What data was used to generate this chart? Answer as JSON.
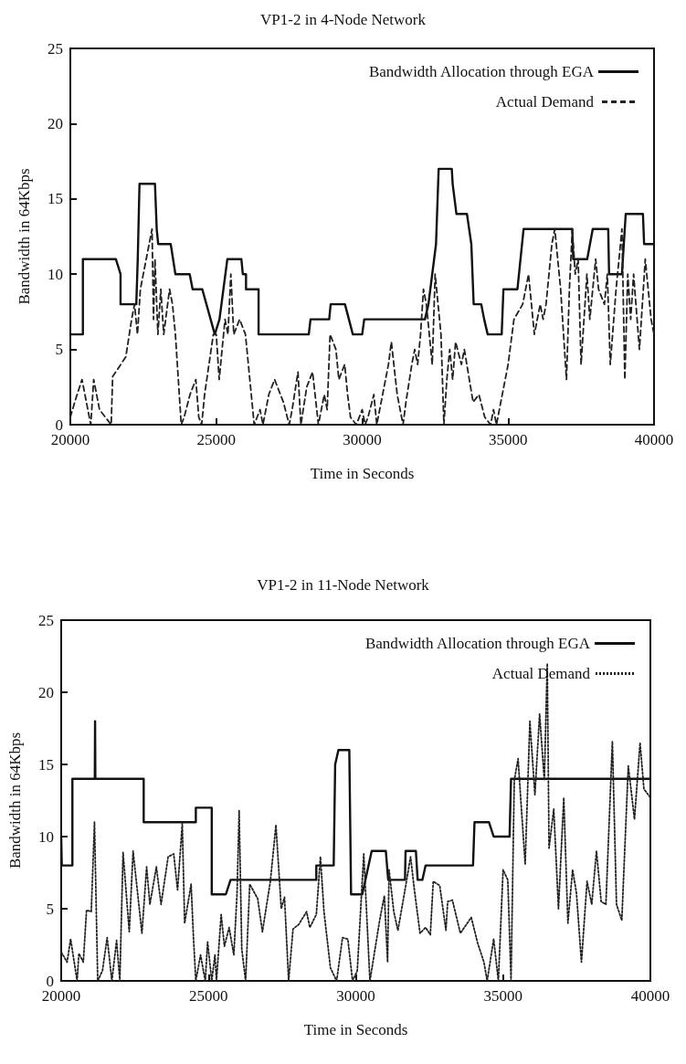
{
  "chart_data": [
    {
      "type": "line",
      "title": "VP1-2 in 4-Node Network",
      "xlabel": "Time in Seconds",
      "ylabel": "Bandwidth in 64Kbps",
      "xlim": [
        20000,
        40000
      ],
      "xticks": [
        20000,
        25000,
        30000,
        35000,
        40000
      ],
      "ylim": [
        0,
        25
      ],
      "yticks": [
        0,
        5,
        10,
        15,
        20,
        25
      ],
      "grid": false,
      "legend": "top right",
      "marker": "none",
      "series": [
        {
          "name": "Bandwidth Allocation through EGA",
          "color": "#111111",
          "line_style": "solid",
          "x": [
            20000,
            20430,
            20430,
            21560,
            21720,
            21720,
            22260,
            22310,
            22370,
            22900,
            22960,
            23010,
            23440,
            23600,
            24090,
            24190,
            24520,
            24950,
            25110,
            25380,
            25860,
            25910,
            26020,
            26020,
            26450,
            26450,
            28170,
            28230,
            28870,
            28920,
            29410,
            29680,
            30000,
            30070,
            32150,
            32270,
            32530,
            32620,
            33070,
            33100,
            33230,
            33590,
            33740,
            33820,
            34080,
            34180,
            34300,
            34780,
            34840,
            35320,
            35530,
            37200,
            37230,
            37710,
            37900,
            38430,
            38460,
            38900,
            39030,
            39620,
            39660,
            40000
          ],
          "values": [
            6,
            6,
            11,
            11,
            10,
            8,
            8,
            11,
            16,
            16,
            13,
            12,
            12,
            10,
            10,
            9,
            9,
            6,
            7,
            11,
            11,
            10,
            10,
            9,
            9,
            6,
            6,
            7,
            7,
            8,
            8,
            6,
            6,
            7,
            7,
            8,
            12,
            17,
            17,
            16,
            14,
            14,
            12,
            8,
            8,
            7,
            6,
            6,
            9,
            9,
            13,
            13,
            11,
            11,
            13,
            13,
            10,
            10,
            14,
            14,
            12,
            12
          ]
        },
        {
          "name": "Actual Demand",
          "color": "#222222",
          "line_style": "dashed",
          "x": [
            20000,
            20150,
            20400,
            20700,
            20800,
            21000,
            21400,
            21450,
            21900,
            22100,
            22200,
            22300,
            22400,
            22600,
            22800,
            22850,
            22900,
            23000,
            23100,
            23200,
            23400,
            23500,
            23600,
            23800,
            23900,
            24100,
            24300,
            24400,
            24500,
            24600,
            24900,
            25000,
            25100,
            25300,
            25400,
            25500,
            25600,
            25800,
            26000,
            26300,
            26500,
            26600,
            26800,
            27000,
            27200,
            27300,
            27500,
            27600,
            27800,
            27900,
            28100,
            28300,
            28500,
            28700,
            28800,
            28900,
            29100,
            29200,
            29400,
            29500,
            29600,
            29800,
            30000,
            30100,
            30200,
            30400,
            30500,
            30700,
            30900,
            31000,
            31200,
            31400,
            31500,
            31700,
            31800,
            31900,
            32000,
            32100,
            32200,
            32400,
            32500,
            32700,
            32800,
            32900,
            33000,
            33100,
            33200,
            33400,
            33500,
            33800,
            34000,
            34200,
            34400,
            34500,
            34600,
            35000,
            35200,
            35500,
            35700,
            35900,
            36100,
            36200,
            36300,
            36500,
            36600,
            36800,
            37000,
            37100,
            37200,
            37300,
            37400,
            37500,
            37700,
            37800,
            38000,
            38100,
            38300,
            38400,
            38500,
            38700,
            38900,
            39000,
            39100,
            39200,
            39300,
            39500,
            39700,
            39900,
            40000
          ],
          "values": [
            0.5,
            1.5,
            3,
            0,
            3,
            1,
            0,
            3.2,
            4.5,
            7,
            8,
            6,
            9,
            11,
            13,
            7,
            11,
            6,
            9,
            6,
            9,
            8,
            6,
            0,
            0.5,
            2,
            3,
            0.5,
            0,
            2,
            6,
            6,
            3,
            7,
            6,
            10,
            6,
            7,
            6,
            0,
            1,
            0,
            2,
            3,
            2,
            1.5,
            0,
            1,
            3.5,
            0,
            2.5,
            3.5,
            0,
            2,
            1,
            6,
            5,
            3,
            4,
            2,
            0.5,
            0,
            1,
            0,
            0.5,
            2,
            0,
            2,
            4,
            5.5,
            2,
            0,
            1.5,
            4,
            5,
            4,
            6,
            9,
            8,
            4,
            10,
            6,
            0,
            3,
            5,
            3,
            5.5,
            4,
            5,
            1.5,
            2,
            0.5,
            0,
            1,
            0,
            4,
            7,
            8,
            10,
            6,
            8,
            7,
            8,
            12,
            13,
            9,
            3,
            9,
            13,
            10,
            11,
            4,
            10,
            7,
            11,
            9,
            8,
            10,
            4,
            9,
            13,
            3,
            10,
            7,
            10,
            5,
            11,
            7,
            6
          ]
        }
      ]
    },
    {
      "type": "line",
      "title": "VP1-2 in 11-Node Network",
      "xlabel": "Time in Seconds",
      "ylabel": "Bandwidth in 64Kbps",
      "xlim": [
        20000,
        40000
      ],
      "xticks": [
        20000,
        25000,
        30000,
        35000,
        40000
      ],
      "ylim": [
        0,
        25
      ],
      "yticks": [
        0,
        5,
        10,
        15,
        20,
        25
      ],
      "grid": false,
      "legend": "top right",
      "marker": "none",
      "series": [
        {
          "name": "Bandwidth Allocation through EGA",
          "color": "#111111",
          "line_style": "solid",
          "x": [
            20000,
            20020,
            20380,
            20380,
            21140,
            21150,
            21160,
            22800,
            22800,
            24570,
            24570,
            25110,
            25110,
            25590,
            25750,
            28660,
            28660,
            29250,
            29300,
            29410,
            29780,
            29840,
            30220,
            30540,
            31020,
            31100,
            31670,
            31690,
            32040,
            32100,
            32260,
            32370,
            33980,
            34030,
            34520,
            34680,
            35220,
            35270,
            40000
          ],
          "values": [
            10,
            8,
            8,
            14,
            14,
            18,
            14,
            14,
            11,
            11,
            12,
            12,
            6,
            6,
            7,
            7,
            8,
            8,
            15,
            16,
            16,
            6,
            6,
            9,
            9,
            7,
            7,
            9,
            9,
            7,
            7,
            8,
            8,
            11,
            11,
            10,
            10,
            14,
            14
          ]
        },
        {
          "name": "Actual Demand",
          "color": "#222222",
          "line_style": "dotted",
          "x": [
            20000,
            20200,
            20320,
            20540,
            20600,
            20750,
            20860,
            21020,
            21130,
            21240,
            21400,
            21560,
            21720,
            21880,
            21990,
            22100,
            22310,
            22440,
            22740,
            22900,
            23010,
            23230,
            23390,
            23630,
            23820,
            23950,
            24110,
            24190,
            24410,
            24490,
            24570,
            24730,
            24890,
            24970,
            25110,
            25220,
            25270,
            25430,
            25540,
            25700,
            25860,
            25970,
            26040,
            26130,
            26260,
            26400,
            26670,
            26830,
            27100,
            27290,
            27470,
            27580,
            27720,
            27870,
            28060,
            28330,
            28440,
            28660,
            28800,
            28920,
            29140,
            29350,
            29550,
            29730,
            29890,
            30050,
            30270,
            30480,
            30810,
            30970,
            31080,
            31130,
            31290,
            31430,
            31670,
            31860,
            31990,
            32180,
            32370,
            32530,
            32630,
            32850,
            33060,
            33120,
            33280,
            33550,
            33920,
            34140,
            34350,
            34460,
            34680,
            34840,
            35000,
            35160,
            35270,
            35380,
            35510,
            35590,
            35750,
            35910,
            36080,
            36240,
            36400,
            36500,
            36560,
            36720,
            36880,
            37060,
            37200,
            37360,
            37490,
            37660,
            37850,
            38010,
            38170,
            38330,
            38490,
            38710,
            38850,
            39030,
            39250,
            39460,
            39650,
            39780,
            40000
          ],
          "values": [
            2,
            1.3,
            2.9,
            0,
            1.9,
            1.3,
            4.9,
            4.8,
            11,
            0,
            0.7,
            3,
            0,
            2.8,
            0,
            8.9,
            3.4,
            9,
            3.3,
            7.9,
            5.3,
            7.9,
            5.3,
            8.6,
            8.8,
            6.3,
            10.9,
            4,
            6.7,
            3,
            0,
            1.8,
            0,
            2.7,
            0,
            1.8,
            0,
            4.6,
            2.4,
            3.7,
            1.8,
            6.1,
            11.8,
            2.2,
            0,
            6.7,
            5.7,
            3.4,
            6.9,
            10.8,
            5,
            5.8,
            0,
            3.6,
            3.9,
            4.8,
            3.7,
            4.6,
            8.6,
            4.8,
            0.9,
            0,
            3,
            2.9,
            0,
            0.7,
            8.8,
            0,
            4.2,
            5.9,
            1.3,
            7.7,
            4.8,
            3.5,
            6.3,
            8.6,
            6.3,
            3.3,
            3.7,
            3.2,
            6.9,
            6.6,
            3.5,
            5.5,
            5.6,
            3.3,
            4.4,
            2.6,
            1.3,
            0,
            2.9,
            0,
            7.7,
            7,
            0,
            13.9,
            15.4,
            12.9,
            8.1,
            18,
            12.9,
            18.5,
            13.9,
            22,
            9.2,
            11.9,
            5,
            12.7,
            4,
            7.7,
            6.1,
            1.3,
            6.9,
            5.3,
            9,
            5.5,
            5.3,
            16.6,
            5.3,
            4.2,
            14.9,
            11.2,
            16.5,
            13.3,
            12.7
          ]
        }
      ]
    }
  ]
}
